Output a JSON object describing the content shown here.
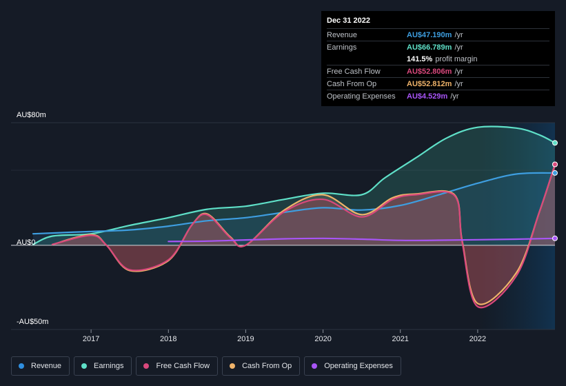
{
  "tooltip": {
    "date": "Dec 31 2022",
    "rows": [
      {
        "label": "Revenue",
        "value": "AU$47.190m",
        "unit": "/yr",
        "color": "#3e9ee0"
      },
      {
        "label": "Earnings",
        "value": "AU$66.789m",
        "unit": "/yr",
        "color": "#5fe0c8"
      },
      {
        "label": "",
        "value": "141.5%",
        "unit": "profit margin",
        "color": "#ffffff"
      },
      {
        "label": "Free Cash Flow",
        "value": "AU$52.806m",
        "unit": "/yr",
        "color": "#d9487c"
      },
      {
        "label": "Cash From Op",
        "value": "AU$52.812m",
        "unit": "/yr",
        "color": "#efb36a"
      },
      {
        "label": "Operating Expenses",
        "value": "AU$4.529m",
        "unit": "/yr",
        "color": "#a855f7"
      }
    ]
  },
  "legend": [
    {
      "label": "Revenue",
      "color": "#2f8fe0"
    },
    {
      "label": "Earnings",
      "color": "#5fe0c8"
    },
    {
      "label": "Free Cash Flow",
      "color": "#d9487c"
    },
    {
      "label": "Cash From Op",
      "color": "#efb36a"
    },
    {
      "label": "Operating Expenses",
      "color": "#a855f7"
    }
  ],
  "chart_data": {
    "type": "area",
    "ytick_labels": {
      "top": "AU$80m",
      "zero": "AU$0",
      "bottom": "-AU$50m"
    },
    "ylim": [
      -50,
      80
    ],
    "xlim": [
      2016.25,
      2023.0
    ],
    "x_ticks": [
      2017,
      2018,
      2019,
      2020,
      2021,
      2022
    ],
    "x_tick_labels": [
      "2017",
      "2018",
      "2019",
      "2020",
      "2021",
      "2022"
    ],
    "series": [
      {
        "name": "Revenue",
        "color": "#3e9ee0",
        "points": [
          [
            2016.25,
            7.5
          ],
          [
            2016.75,
            8.5
          ],
          [
            2017.0,
            9
          ],
          [
            2017.5,
            10
          ],
          [
            2018.0,
            12.5
          ],
          [
            2018.5,
            16
          ],
          [
            2019.0,
            18
          ],
          [
            2019.5,
            21.5
          ],
          [
            2020.0,
            24.5
          ],
          [
            2020.5,
            23
          ],
          [
            2021.0,
            26
          ],
          [
            2021.5,
            33
          ],
          [
            2022.0,
            40.5
          ],
          [
            2022.5,
            46.5
          ],
          [
            2023.0,
            47.2
          ]
        ]
      },
      {
        "name": "Earnings",
        "color": "#5fe0c8",
        "points": [
          [
            2016.25,
            0.5
          ],
          [
            2016.5,
            6
          ],
          [
            2017.0,
            7.5
          ],
          [
            2017.5,
            13
          ],
          [
            2018.0,
            18
          ],
          [
            2018.5,
            23.5
          ],
          [
            2019.0,
            25.5
          ],
          [
            2019.5,
            30
          ],
          [
            2020.0,
            34
          ],
          [
            2020.5,
            33
          ],
          [
            2020.8,
            44
          ],
          [
            2021.2,
            57
          ],
          [
            2021.6,
            70
          ],
          [
            2022.0,
            77
          ],
          [
            2022.5,
            76.5
          ],
          [
            2022.8,
            72
          ],
          [
            2023.0,
            66.8
          ]
        ]
      },
      {
        "name": "Free Cash Flow",
        "color": "#d9487c",
        "points": [
          [
            2016.5,
            0.5
          ],
          [
            2017.0,
            6.5
          ],
          [
            2017.2,
            0
          ],
          [
            2017.5,
            -16
          ],
          [
            2018.0,
            -9.5
          ],
          [
            2018.3,
            13
          ],
          [
            2018.5,
            20
          ],
          [
            2018.8,
            5
          ],
          [
            2019.0,
            0
          ],
          [
            2019.5,
            22
          ],
          [
            2020.0,
            30
          ],
          [
            2020.5,
            18.5
          ],
          [
            2020.9,
            30
          ],
          [
            2021.2,
            33
          ],
          [
            2021.7,
            32.5
          ],
          [
            2021.8,
            2
          ],
          [
            2022.0,
            -40
          ],
          [
            2022.5,
            -20
          ],
          [
            2022.8,
            22
          ],
          [
            2023.0,
            52.8
          ]
        ]
      },
      {
        "name": "Cash From Op",
        "color": "#efb36a",
        "points": [
          [
            2016.5,
            0.5
          ],
          [
            2017.0,
            7
          ],
          [
            2017.2,
            0
          ],
          [
            2017.5,
            -16.5
          ],
          [
            2018.0,
            -10
          ],
          [
            2018.3,
            13
          ],
          [
            2018.5,
            20.5
          ],
          [
            2018.8,
            5.5
          ],
          [
            2019.0,
            0
          ],
          [
            2019.5,
            23
          ],
          [
            2020.0,
            33
          ],
          [
            2020.5,
            20
          ],
          [
            2020.9,
            31
          ],
          [
            2021.2,
            33.5
          ],
          [
            2021.7,
            33
          ],
          [
            2021.8,
            3
          ],
          [
            2022.0,
            -38
          ],
          [
            2022.5,
            -18
          ],
          [
            2022.8,
            22
          ],
          [
            2023.0,
            52.8
          ]
        ]
      },
      {
        "name": "Operating Expenses",
        "color": "#a855f7",
        "points": [
          [
            2018.0,
            2.5
          ],
          [
            2018.5,
            2.7
          ],
          [
            2019.0,
            3.5
          ],
          [
            2019.5,
            4.2
          ],
          [
            2020.0,
            4.5
          ],
          [
            2020.5,
            4.0
          ],
          [
            2021.0,
            3.2
          ],
          [
            2021.5,
            3.3
          ],
          [
            2022.0,
            3.6
          ],
          [
            2022.5,
            4.0
          ],
          [
            2023.0,
            4.5
          ]
        ]
      }
    ]
  }
}
